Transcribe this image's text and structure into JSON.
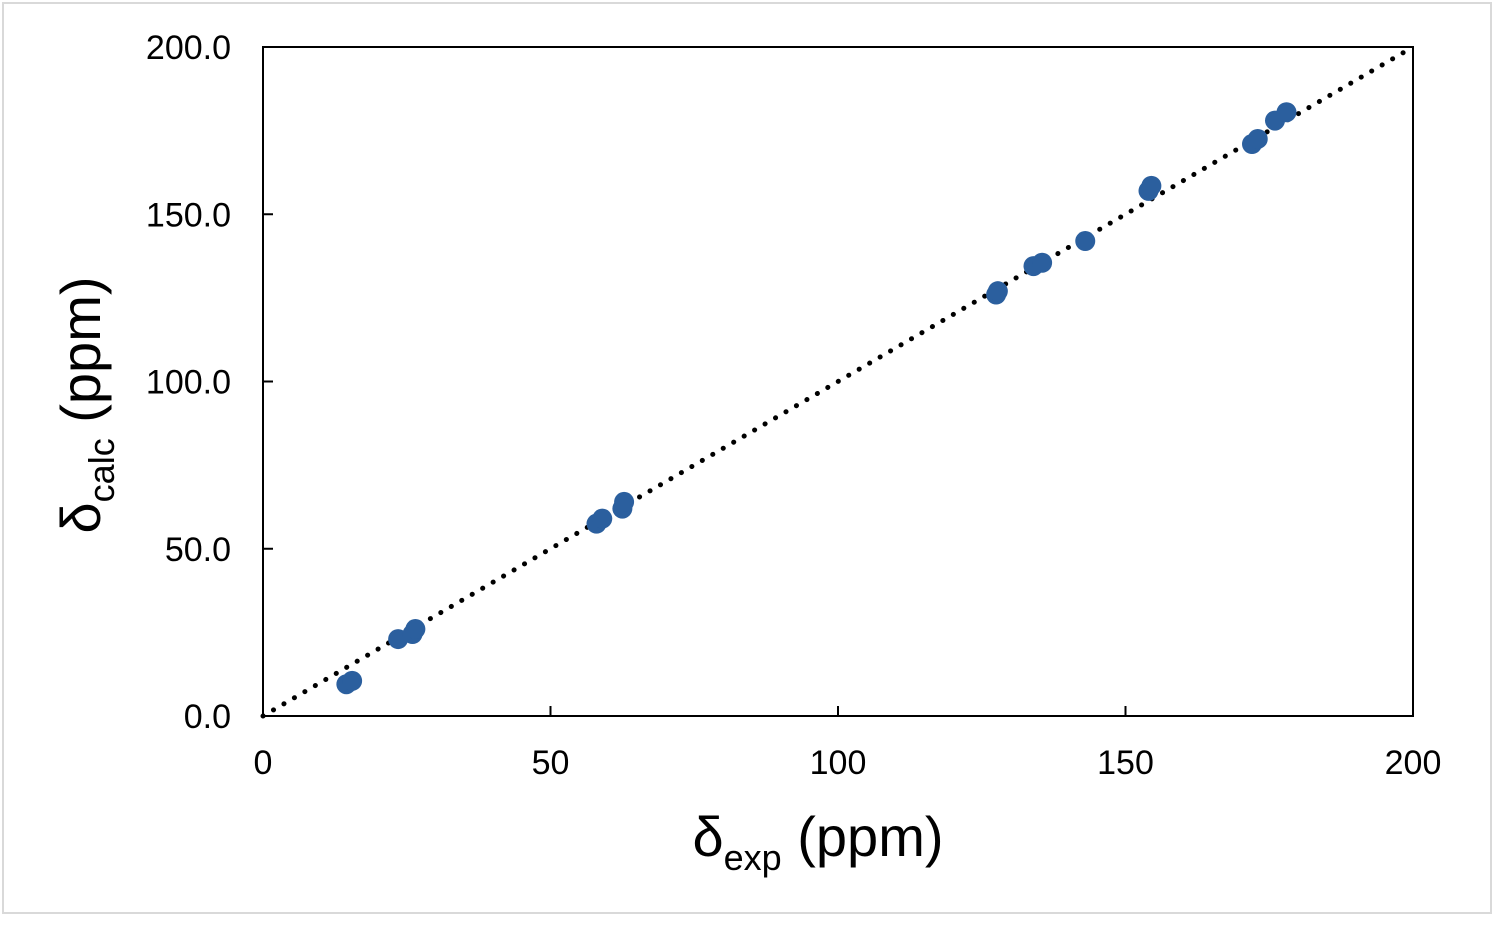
{
  "chart_data": {
    "type": "scatter",
    "title": "",
    "xlabel": {
      "main": "δ",
      "sub": "exp",
      "unit": " (ppm)"
    },
    "ylabel": {
      "main": "δ",
      "sub": "calc",
      "unit": " (ppm)"
    },
    "xlim": [
      0,
      200
    ],
    "ylim": [
      0,
      200
    ],
    "x_ticks": [
      "0",
      "50",
      "100",
      "150",
      "200"
    ],
    "y_ticks": [
      "0.0",
      "50.0",
      "100.0",
      "150.0",
      "200.0"
    ],
    "grid": false,
    "legend": "none",
    "series": [
      {
        "color": "#2b5f9e",
        "points": [
          [
            14.5,
            9.5
          ],
          [
            15.5,
            10.5
          ],
          [
            23.5,
            23.0
          ],
          [
            26.0,
            24.5
          ],
          [
            26.5,
            26.0
          ],
          [
            58.0,
            57.5
          ],
          [
            59.0,
            59.0
          ],
          [
            62.5,
            62.0
          ],
          [
            62.8,
            64.0
          ],
          [
            127.5,
            126.0
          ],
          [
            127.8,
            127.0
          ],
          [
            134.0,
            134.5
          ],
          [
            135.5,
            135.5
          ],
          [
            143.0,
            142.0
          ],
          [
            154.0,
            157.0
          ],
          [
            154.5,
            158.5
          ],
          [
            172.0,
            171.0
          ],
          [
            173.0,
            172.5
          ],
          [
            176.0,
            178.0
          ],
          [
            178.0,
            180.5
          ]
        ]
      }
    ],
    "reference_line": {
      "style": "dotted",
      "color": "#000000",
      "from": [
        0,
        0
      ],
      "to": [
        200,
        200
      ]
    }
  }
}
